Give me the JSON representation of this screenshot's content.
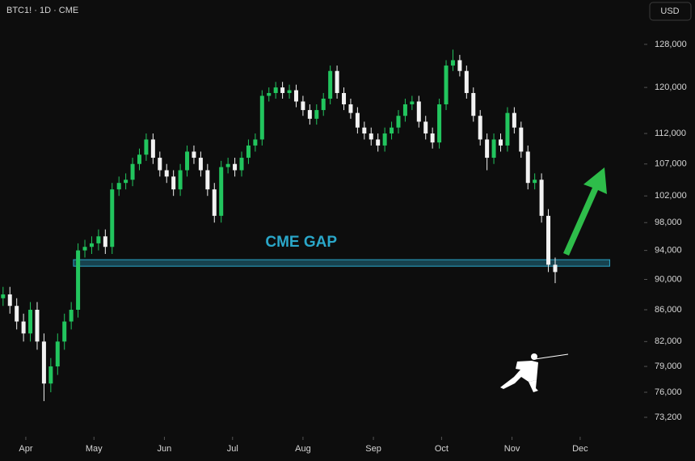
{
  "chart_data": {
    "type": "candlestick",
    "title": "BTC1! · 1D · CME",
    "currency": "USD",
    "log_scale": true,
    "up_color": "#22c55e",
    "down_color": "#f2f2f2",
    "x": [
      -10,
      -7,
      -4,
      -1,
      2,
      5,
      8,
      11,
      14,
      17,
      20,
      23,
      26,
      29,
      32,
      35,
      38,
      41,
      44,
      47,
      50,
      53,
      56,
      59,
      62,
      65,
      68,
      71,
      74,
      77,
      80,
      83,
      86,
      89,
      92,
      95,
      98,
      101,
      104,
      107,
      110,
      113,
      116,
      119,
      122,
      125,
      128,
      131,
      134,
      137,
      140,
      143,
      146,
      149,
      152,
      155,
      158,
      161,
      164,
      167,
      170,
      173,
      176,
      179,
      182,
      185,
      188,
      191,
      194,
      197,
      200,
      203,
      206,
      209,
      212,
      215,
      218,
      221,
      224,
      227,
      230,
      233
    ],
    "open": [
      87500,
      88000,
      86500,
      84500,
      83000,
      86000,
      82000,
      77000,
      79000,
      82000,
      84500,
      86000,
      94000,
      94500,
      95000,
      96000,
      94500,
      103000,
      104000,
      104500,
      107000,
      108500,
      111000,
      108000,
      106000,
      105000,
      103000,
      106000,
      109000,
      108000,
      106000,
      103000,
      99000,
      106500,
      107000,
      106000,
      108000,
      110000,
      111000,
      118500,
      119000,
      120000,
      119000,
      119500,
      117500,
      116000,
      114500,
      116000,
      118000,
      123000,
      119000,
      117000,
      115500,
      113000,
      112000,
      111000,
      110000,
      112000,
      113000,
      115000,
      117000,
      117500,
      114000,
      112000,
      110500,
      117000,
      124000,
      125000,
      123000,
      119000,
      115000,
      111000,
      108000,
      111000,
      110000,
      115500,
      113000,
      109000,
      104000,
      104500,
      99000,
      92000
    ],
    "high": [
      89000,
      89000,
      87500,
      85500,
      87000,
      87000,
      83000,
      80000,
      83000,
      85500,
      87000,
      95000,
      95500,
      96000,
      97000,
      97000,
      104000,
      105000,
      105500,
      108000,
      109500,
      112000,
      112000,
      109000,
      107000,
      106000,
      107000,
      110000,
      110000,
      109000,
      107000,
      104000,
      107500,
      108000,
      108000,
      109000,
      111000,
      112000,
      119500,
      120000,
      121000,
      121000,
      120500,
      120500,
      118500,
      117000,
      117000,
      119000,
      124000,
      124000,
      120000,
      118000,
      116500,
      114000,
      113000,
      112000,
      113000,
      114000,
      116000,
      118000,
      118500,
      118500,
      115000,
      113000,
      118000,
      125000,
      127000,
      126000,
      124000,
      120000,
      116000,
      112000,
      112000,
      112000,
      116500,
      116500,
      114000,
      110000,
      105500,
      105500,
      100000,
      93000
    ],
    "low": [
      86500,
      85500,
      83500,
      82000,
      82000,
      81000,
      75000,
      76000,
      78000,
      81000,
      83500,
      85000,
      93000,
      93500,
      94000,
      93500,
      93500,
      102000,
      103000,
      103500,
      106000,
      107500,
      107000,
      105000,
      104000,
      102000,
      102000,
      105000,
      107000,
      105000,
      102000,
      98000,
      98000,
      105500,
      105000,
      105000,
      107000,
      109000,
      110000,
      117500,
      118000,
      118000,
      118000,
      116500,
      115000,
      113500,
      113500,
      115000,
      117000,
      118000,
      116000,
      114500,
      112000,
      111000,
      110000,
      109000,
      109000,
      111000,
      112000,
      114000,
      116000,
      113000,
      111000,
      109500,
      109500,
      116000,
      123000,
      122000,
      118000,
      114000,
      110000,
      106000,
      107000,
      109000,
      109000,
      112000,
      108000,
      103000,
      103000,
      98000,
      91000,
      89500
    ],
    "close": [
      88000,
      86500,
      84500,
      83000,
      86000,
      82000,
      77000,
      79000,
      82000,
      84500,
      86000,
      94000,
      94500,
      95000,
      96000,
      94500,
      103000,
      104000,
      104500,
      107000,
      108500,
      111000,
      108000,
      106000,
      105000,
      103000,
      106000,
      109000,
      108000,
      106000,
      103000,
      99000,
      106500,
      107000,
      106000,
      108000,
      110000,
      111000,
      118500,
      119000,
      120000,
      119000,
      119500,
      117500,
      116000,
      114500,
      116000,
      118000,
      123000,
      119000,
      117000,
      115500,
      113000,
      112000,
      111000,
      110000,
      112000,
      113000,
      115000,
      117000,
      117500,
      114000,
      112000,
      110500,
      117000,
      124000,
      125000,
      123000,
      119000,
      115000,
      111000,
      108000,
      111000,
      110000,
      115500,
      113000,
      109000,
      104000,
      104500,
      99000,
      92000,
      91000
    ],
    "xlim": [
      -11,
      270
    ],
    "xticks": [
      {
        "value": 0,
        "label": "Apr"
      },
      {
        "value": 30,
        "label": "May"
      },
      {
        "value": 61,
        "label": "Jun"
      },
      {
        "value": 91,
        "label": "Jul"
      },
      {
        "value": 122,
        "label": "Aug"
      },
      {
        "value": 153,
        "label": "Sep"
      },
      {
        "value": 183,
        "label": "Oct"
      },
      {
        "value": 214,
        "label": "Nov"
      },
      {
        "value": 244,
        "label": "Dec"
      }
    ],
    "ylim": [
      71100,
      136800
    ],
    "yticks": [
      {
        "value": 128000,
        "label": "128,000"
      },
      {
        "value": 120000,
        "label": "120,000"
      },
      {
        "value": 112000,
        "label": "112,000"
      },
      {
        "value": 107000,
        "label": "107,000"
      },
      {
        "value": 102000,
        "label": "102,000"
      },
      {
        "value": 98000,
        "label": "98,000"
      },
      {
        "value": 94000,
        "label": "94,000"
      },
      {
        "value": 90000,
        "label": "90,000"
      },
      {
        "value": 86000,
        "label": "86,000"
      },
      {
        "value": 82000,
        "label": "82,000"
      },
      {
        "value": 79000,
        "label": "79,000"
      },
      {
        "value": 76000,
        "label": "76,000"
      },
      {
        "value": {
          "v": 73200
        },
        "label": "73,200"
      }
    ],
    "gap": {
      "label": "CME GAP",
      "low": 91800,
      "high": 92700,
      "x_start": 21,
      "x_end": 257,
      "color": "#2aa7c9"
    }
  }
}
